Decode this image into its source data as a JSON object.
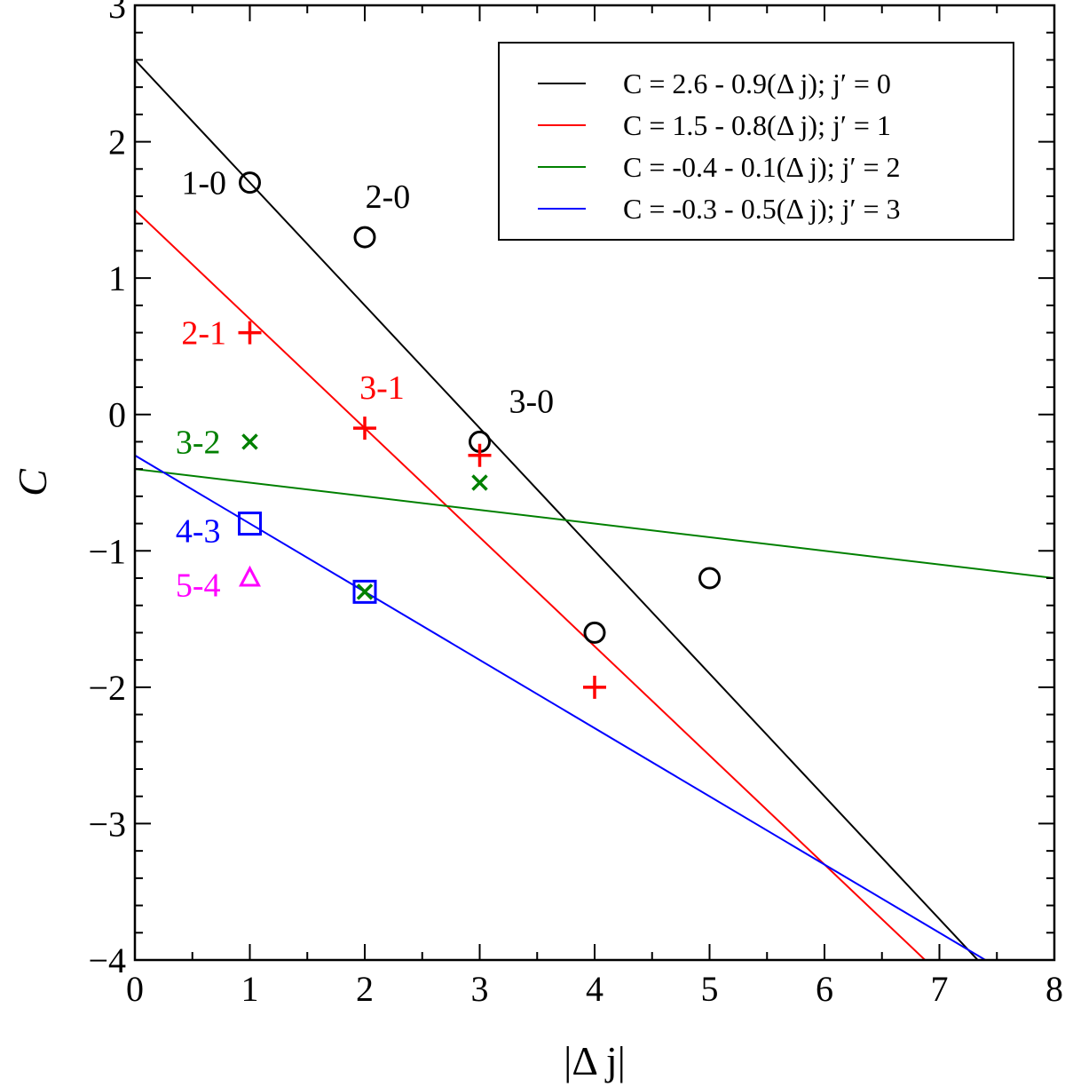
{
  "chart_data": {
    "type": "scatter",
    "xlabel": "|Δ j|",
    "ylabel": "C",
    "xlim": [
      0,
      8
    ],
    "ylim": [
      -4,
      3
    ],
    "x_ticks": [
      "0",
      "1",
      "2",
      "3",
      "4",
      "5",
      "6",
      "7",
      "8"
    ],
    "y_ticks": [
      "3",
      "2",
      "1",
      "0",
      "−1",
      "−2",
      "−3",
      "−4"
    ],
    "grid": false,
    "legend_position": "top-right",
    "colors": {
      "jprime0": "#000000",
      "jprime1": "#ff0000",
      "jprime2": "#008000",
      "jprime3": "#0000ff",
      "jprime4": "#ff00ff"
    },
    "fit_lines": [
      {
        "name": "C = 2.6 - 0.9(Δ j);  j′ = 0",
        "intercept": 2.6,
        "slope": -0.9,
        "color": "#000000"
      },
      {
        "name": "C = 1.5 - 0.8(Δ j);  j′ = 1",
        "intercept": 1.5,
        "slope": -0.8,
        "color": "#ff0000"
      },
      {
        "name": "C = -0.4 - 0.1(Δ j);  j′ = 2",
        "intercept": -0.4,
        "slope": -0.1,
        "color": "#008000"
      },
      {
        "name": "C = -0.3 - 0.5(Δ j);  j′ = 3",
        "intercept": -0.3,
        "slope": -0.5,
        "color": "#0000ff"
      }
    ],
    "series": [
      {
        "marker": "circle",
        "color": "#000000",
        "points": [
          [
            1,
            1.7
          ],
          [
            2,
            1.3
          ],
          [
            3,
            -0.2
          ],
          [
            4,
            -1.6
          ],
          [
            5,
            -1.2
          ]
        ]
      },
      {
        "marker": "plus",
        "color": "#ff0000",
        "points": [
          [
            1,
            0.6
          ],
          [
            2,
            -0.1
          ],
          [
            3,
            -0.3
          ],
          [
            4,
            -2.0
          ]
        ]
      },
      {
        "marker": "cross",
        "color": "#008000",
        "points": [
          [
            1,
            -0.2
          ],
          [
            2,
            -1.3
          ],
          [
            3,
            -0.5
          ]
        ]
      },
      {
        "marker": "square",
        "color": "#0000ff",
        "points": [
          [
            1,
            -0.8
          ],
          [
            2,
            -1.3
          ]
        ]
      },
      {
        "marker": "triangle",
        "color": "#ff00ff",
        "points": [
          [
            1,
            -1.2
          ]
        ]
      }
    ],
    "annotations": [
      {
        "text": "1-0",
        "color": "#000000",
        "x": 0.6,
        "y": 1.7
      },
      {
        "text": "2-0",
        "color": "#000000",
        "x": 2.2,
        "y": 1.6
      },
      {
        "text": "3-0",
        "color": "#000000",
        "x": 3.45,
        "y": 0.1
      },
      {
        "text": "2-1",
        "color": "#ff0000",
        "x": 0.6,
        "y": 0.6
      },
      {
        "text": "3-1",
        "color": "#ff0000",
        "x": 2.15,
        "y": 0.2
      },
      {
        "text": "3-2",
        "color": "#008000",
        "x": 0.55,
        "y": -0.2
      },
      {
        "text": "4-3",
        "color": "#0000ff",
        "x": 0.55,
        "y": -0.85
      },
      {
        "text": "5-4",
        "color": "#ff00ff",
        "x": 0.55,
        "y": -1.25
      }
    ]
  }
}
